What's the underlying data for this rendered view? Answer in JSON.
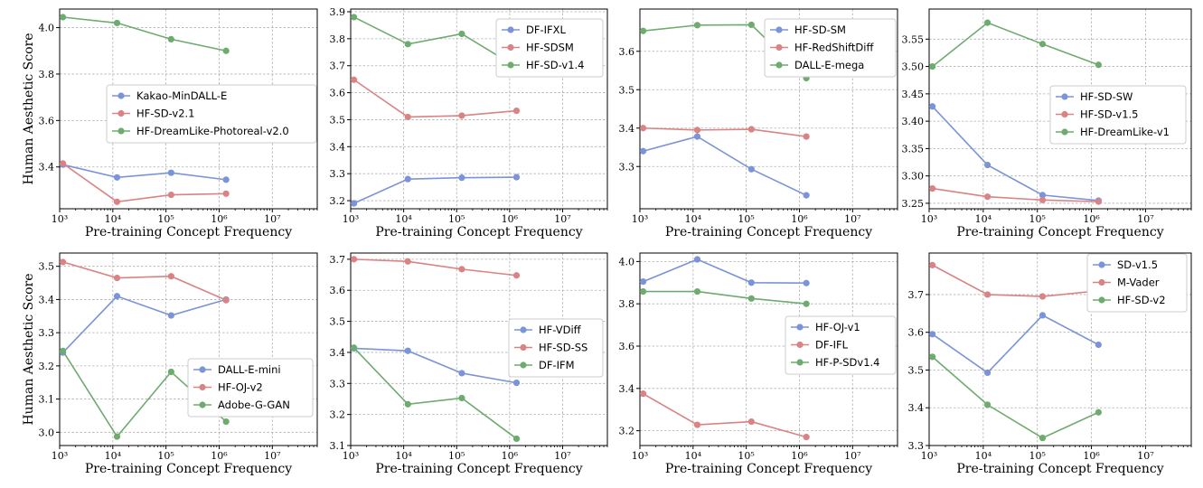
{
  "colors": {
    "blue": "#7b93d8",
    "red": "#d98384",
    "green": "#6eab6e"
  },
  "chart_data": [
    {
      "type": "line",
      "xscale": "log",
      "xlim": [
        1000,
        70000000
      ],
      "ylim": [
        3.22,
        4.08
      ],
      "yticks": [
        3.4,
        3.6,
        3.8,
        4.0
      ],
      "ytick_labels": [
        "3.4",
        "3.6",
        "3.8",
        "4.0"
      ],
      "xticks": [
        1000,
        10000,
        100000,
        1000000,
        10000000
      ],
      "xtick_labels": [
        "10³",
        "10⁴",
        "10⁵",
        "10⁶",
        "10⁷"
      ],
      "xlabel": "Pre-training Concept Frequency",
      "ylabel": "Human Aesthetic Score",
      "grid": true,
      "legend_position": "center-right",
      "x": [
        1150,
        12000,
        125000,
        1350000
      ],
      "series": [
        {
          "name": "Kakao-MinDALL-E",
          "color": "blue",
          "values": [
            3.41,
            3.355,
            3.375,
            3.345
          ]
        },
        {
          "name": "HF-SD-v2.1",
          "color": "red",
          "values": [
            3.415,
            3.25,
            3.28,
            3.285
          ]
        },
        {
          "name": "HF-DreamLike-Photoreal-v2.0",
          "color": "green",
          "values": [
            4.045,
            4.02,
            3.95,
            3.9
          ]
        }
      ]
    },
    {
      "type": "line",
      "xscale": "log",
      "xlim": [
        1000,
        70000000
      ],
      "ylim": [
        3.17,
        3.91
      ],
      "yticks": [
        3.2,
        3.3,
        3.4,
        3.5,
        3.6,
        3.7,
        3.8,
        3.9
      ],
      "ytick_labels": [
        "3.2",
        "3.3",
        "3.4",
        "3.5",
        "3.6",
        "3.7",
        "3.8",
        "3.9"
      ],
      "xticks": [
        1000,
        10000,
        100000,
        1000000,
        10000000
      ],
      "xtick_labels": [
        "10³",
        "10⁴",
        "10⁵",
        "10⁶",
        "10⁷"
      ],
      "xlabel": "Pre-training Concept Frequency",
      "ylabel": "",
      "grid": true,
      "legend_position": "top-right",
      "x": [
        1150,
        12000,
        125000,
        1350000
      ],
      "series": [
        {
          "name": "DF-IFXL",
          "color": "blue",
          "values": [
            3.19,
            3.28,
            3.285,
            3.287
          ]
        },
        {
          "name": "HF-SDSM",
          "color": "red",
          "values": [
            3.648,
            3.51,
            3.515,
            3.533
          ]
        },
        {
          "name": "HF-SD-v1.4",
          "color": "green",
          "values": [
            3.88,
            3.78,
            3.818,
            3.695
          ]
        }
      ]
    },
    {
      "type": "line",
      "xscale": "log",
      "xlim": [
        1000,
        70000000
      ],
      "ylim": [
        3.19,
        3.71
      ],
      "yticks": [
        3.3,
        3.4,
        3.5,
        3.6
      ],
      "ytick_labels": [
        "3.3",
        "3.4",
        "3.5",
        "3.6"
      ],
      "xticks": [
        1000,
        10000,
        100000,
        1000000,
        10000000
      ],
      "xtick_labels": [
        "10³",
        "10⁴",
        "10⁵",
        "10⁶",
        "10⁷"
      ],
      "xlabel": "Pre-training Concept Frequency",
      "ylabel": "",
      "grid": true,
      "legend_position": "top-right",
      "x": [
        1150,
        12000,
        125000,
        1350000
      ],
      "series": [
        {
          "name": "HF-SD-SM",
          "color": "blue",
          "values": [
            3.34,
            3.378,
            3.293,
            3.225
          ]
        },
        {
          "name": "HF-RedShiftDiff",
          "color": "red",
          "values": [
            3.4,
            3.395,
            3.397,
            3.378
          ]
        },
        {
          "name": "DALL-E-mega",
          "color": "green",
          "values": [
            3.653,
            3.668,
            3.669,
            3.53
          ]
        }
      ]
    },
    {
      "type": "line",
      "xscale": "log",
      "xlim": [
        1000,
        70000000
      ],
      "ylim": [
        3.24,
        3.605
      ],
      "yticks": [
        3.25,
        3.3,
        3.35,
        3.4,
        3.45,
        3.5,
        3.55
      ],
      "ytick_labels": [
        "3.25",
        "3.30",
        "3.35",
        "3.40",
        "3.45",
        "3.50",
        "3.55"
      ],
      "xticks": [
        1000,
        10000,
        100000,
        1000000,
        10000000
      ],
      "xtick_labels": [
        "10³",
        "10⁴",
        "10⁵",
        "10⁶",
        "10⁷"
      ],
      "xlabel": "Pre-training Concept Frequency",
      "ylabel": "",
      "grid": true,
      "legend_position": "center-right",
      "x": [
        1150,
        12000,
        125000,
        1350000
      ],
      "series": [
        {
          "name": "HF-SD-SW",
          "color": "blue",
          "values": [
            3.427,
            3.32,
            3.265,
            3.255
          ]
        },
        {
          "name": "HF-SD-v1.5",
          "color": "red",
          "values": [
            3.277,
            3.262,
            3.256,
            3.253
          ]
        },
        {
          "name": "HF-DreamLike-v1",
          "color": "green",
          "values": [
            3.5,
            3.58,
            3.541,
            3.503
          ]
        }
      ]
    },
    {
      "type": "line",
      "xscale": "log",
      "xlim": [
        1000,
        70000000
      ],
      "ylim": [
        2.96,
        3.54
      ],
      "yticks": [
        3.0,
        3.1,
        3.2,
        3.3,
        3.4,
        3.5
      ],
      "ytick_labels": [
        "3.0",
        "3.1",
        "3.2",
        "3.3",
        "3.4",
        "3.5"
      ],
      "xticks": [
        1000,
        10000,
        100000,
        1000000,
        10000000
      ],
      "xtick_labels": [
        "10³",
        "10⁴",
        "10⁵",
        "10⁶",
        "10⁷"
      ],
      "xlabel": "Pre-training Concept Frequency",
      "ylabel": "Human Aesthetic Score",
      "grid": true,
      "legend_position": "bottom-right",
      "x": [
        1150,
        12000,
        125000,
        1350000
      ],
      "series": [
        {
          "name": "DALL-E-mini",
          "color": "blue",
          "values": [
            3.24,
            3.41,
            3.352,
            3.4
          ]
        },
        {
          "name": "HF-OJ-v2",
          "color": "red",
          "values": [
            3.513,
            3.465,
            3.47,
            3.398
          ]
        },
        {
          "name": "Adobe-G-GAN",
          "color": "green",
          "values": [
            3.245,
            2.987,
            3.182,
            3.032
          ]
        }
      ]
    },
    {
      "type": "line",
      "xscale": "log",
      "xlim": [
        1000,
        70000000
      ],
      "ylim": [
        3.1,
        3.72
      ],
      "yticks": [
        3.1,
        3.2,
        3.3,
        3.4,
        3.5,
        3.6,
        3.7
      ],
      "ytick_labels": [
        "3.1",
        "3.2",
        "3.3",
        "3.4",
        "3.5",
        "3.6",
        "3.7"
      ],
      "xticks": [
        1000,
        10000,
        100000,
        1000000,
        10000000
      ],
      "xtick_labels": [
        "10³",
        "10⁴",
        "10⁵",
        "10⁶",
        "10⁷"
      ],
      "xlabel": "Pre-training Concept Frequency",
      "ylabel": "",
      "grid": true,
      "legend_position": "center-right",
      "x": [
        1150,
        12000,
        125000,
        1350000
      ],
      "series": [
        {
          "name": "HF-VDiff",
          "color": "blue",
          "values": [
            3.413,
            3.405,
            3.333,
            3.302
          ]
        },
        {
          "name": "HF-SD-SS",
          "color": "red",
          "values": [
            3.7,
            3.693,
            3.668,
            3.648
          ]
        },
        {
          "name": "DF-IFM",
          "color": "green",
          "values": [
            3.415,
            3.233,
            3.253,
            3.122
          ]
        }
      ]
    },
    {
      "type": "line",
      "xscale": "log",
      "xlim": [
        1000,
        70000000
      ],
      "ylim": [
        3.13,
        4.04
      ],
      "yticks": [
        3.2,
        3.4,
        3.6,
        3.8,
        4.0
      ],
      "ytick_labels": [
        "3.2",
        "3.4",
        "3.6",
        "3.8",
        "4.0"
      ],
      "xticks": [
        1000,
        10000,
        100000,
        1000000,
        10000000
      ],
      "xtick_labels": [
        "10³",
        "10⁴",
        "10⁵",
        "10⁶",
        "10⁷"
      ],
      "xlabel": "Pre-training Concept Frequency",
      "ylabel": "",
      "grid": true,
      "legend_position": "center-right",
      "x": [
        1150,
        12000,
        125000,
        1350000
      ],
      "series": [
        {
          "name": "HF-OJ-v1",
          "color": "blue",
          "values": [
            3.905,
            4.01,
            3.9,
            3.898
          ]
        },
        {
          "name": "DF-IFL",
          "color": "red",
          "values": [
            3.375,
            3.228,
            3.243,
            3.17
          ]
        },
        {
          "name": "HF-P-SDv1.4",
          "color": "green",
          "values": [
            3.858,
            3.858,
            3.825,
            3.8
          ]
        }
      ]
    },
    {
      "type": "line",
      "xscale": "log",
      "xlim": [
        1000,
        70000000
      ],
      "ylim": [
        3.3,
        3.81
      ],
      "yticks": [
        3.3,
        3.4,
        3.5,
        3.6,
        3.7
      ],
      "ytick_labels": [
        "3.3",
        "3.4",
        "3.5",
        "3.6",
        "3.7"
      ],
      "xticks": [
        1000,
        10000,
        100000,
        1000000,
        10000000
      ],
      "xtick_labels": [
        "10³",
        "10⁴",
        "10⁵",
        "10⁶",
        "10⁷"
      ],
      "xlabel": "Pre-training Concept Frequency",
      "ylabel": "",
      "grid": true,
      "legend_position": "top-right",
      "x": [
        1150,
        12000,
        125000,
        1350000
      ],
      "series": [
        {
          "name": "SD-v1.5",
          "color": "blue",
          "values": [
            3.595,
            3.493,
            3.645,
            3.567
          ]
        },
        {
          "name": "M-Vader",
          "color": "red",
          "values": [
            3.778,
            3.7,
            3.695,
            3.71
          ]
        },
        {
          "name": "HF-SD-v2",
          "color": "green",
          "values": [
            3.535,
            3.408,
            3.32,
            3.388
          ]
        }
      ]
    }
  ]
}
